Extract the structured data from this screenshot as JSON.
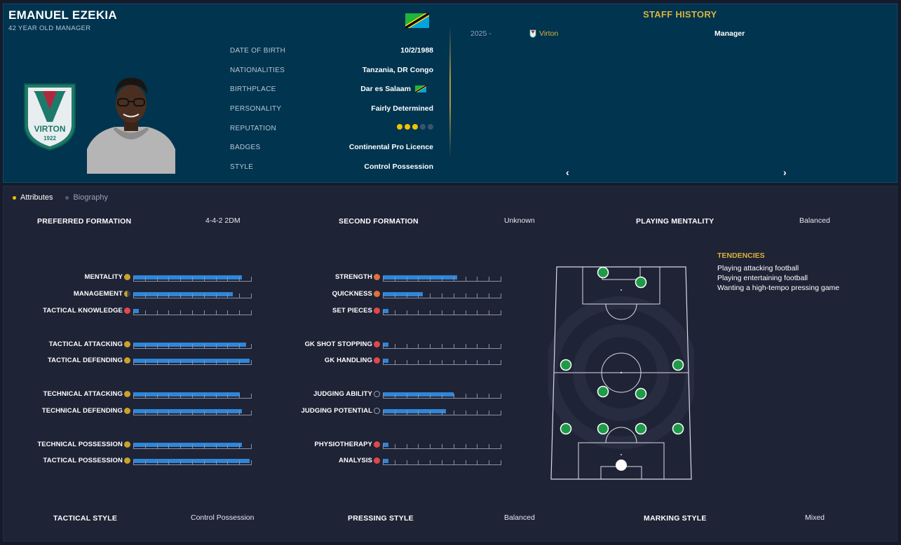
{
  "header": {
    "name": "EMANUEL EZEKIA",
    "subtitle": "42 YEAR OLD MANAGER"
  },
  "info": [
    {
      "label": "DATE OF BIRTH",
      "value": "10/2/1988"
    },
    {
      "label": "NATIONALITIES",
      "value": "Tanzania, DR Congo"
    },
    {
      "label": "BIRTHPLACE",
      "value": "Dar es Salaam"
    },
    {
      "label": "PERSONALITY",
      "value": "Fairly Determined"
    },
    {
      "label": "REPUTATION",
      "value": ""
    },
    {
      "label": "BADGES",
      "value": "Continental Pro Licence"
    },
    {
      "label": "STYLE",
      "value": "Control Possession"
    }
  ],
  "reputation": {
    "stars": 3,
    "max": 5
  },
  "crest": {
    "text": "VIRTON",
    "year": "1922"
  },
  "staff_history": {
    "title": "STAFF HISTORY",
    "rows": [
      {
        "year": "2025 -",
        "club": "Virton",
        "role": "Manager"
      }
    ],
    "prev_icon": "chevron-left-icon",
    "next_icon": "chevron-right-icon"
  },
  "tabs": [
    {
      "label": "Attributes",
      "active": true
    },
    {
      "label": "Biography",
      "active": false
    }
  ],
  "formations": {
    "preferred_label": "PREFERRED FORMATION",
    "preferred_value": "4-4-2 2DM",
    "second_label": "SECOND FORMATION",
    "second_value": "Unknown",
    "mentality_label": "PLAYING MENTALITY",
    "mentality_value": "Balanced"
  },
  "attributes_left": [
    {
      "label": "MENTALITY",
      "value": 0.92,
      "icon": "gold"
    },
    {
      "label": "MANAGEMENT",
      "value": 0.84,
      "icon": "half"
    },
    {
      "label": "TACTICAL KNOWLEDGE",
      "value": 0.05,
      "icon": "red"
    },
    {
      "label": "TACTICAL ATTACKING",
      "value": 0.95,
      "icon": "gold"
    },
    {
      "label": "TACTICAL DEFENDING",
      "value": 0.98,
      "icon": "gold"
    },
    {
      "label": "TECHNICAL ATTACKING",
      "value": 0.9,
      "icon": "gold"
    },
    {
      "label": "TECHNICAL DEFENDING",
      "value": 0.92,
      "icon": "gold"
    },
    {
      "label": "TECHNICAL POSSESSION",
      "value": 0.92,
      "icon": "gold"
    },
    {
      "label": "TACTICAL POSSESSION",
      "value": 0.98,
      "icon": "gold"
    }
  ],
  "attributes_right": [
    {
      "label": "STRENGTH",
      "value": 0.63,
      "icon": "orange"
    },
    {
      "label": "QUICKNESS",
      "value": 0.34,
      "icon": "orange"
    },
    {
      "label": "SET PIECES",
      "value": 0.05,
      "icon": "red"
    },
    {
      "label": "GK SHOT STOPPING",
      "value": 0.05,
      "icon": "red"
    },
    {
      "label": "GK HANDLING",
      "value": 0.05,
      "icon": "red"
    },
    {
      "label": "JUDGING ABILITY",
      "value": 0.6,
      "icon": "ball"
    },
    {
      "label": "JUDGING POTENTIAL",
      "value": 0.53,
      "icon": "ball"
    },
    {
      "label": "PHYSIOTHERAPY",
      "value": 0.05,
      "icon": "red"
    },
    {
      "label": "ANALYSIS",
      "value": 0.05,
      "icon": "red"
    }
  ],
  "tendencies": {
    "title": "TENDENCIES",
    "items": [
      "Playing attacking football",
      "Playing entertaining football",
      "Wanting a high-tempo pressing game"
    ]
  },
  "styles": {
    "tactical_label": "TACTICAL STYLE",
    "tactical_value": "Control Possession",
    "pressing_label": "PRESSING STYLE",
    "pressing_value": "Balanced",
    "marking_label": "MARKING STYLE",
    "marking_value": "Mixed"
  },
  "colors": {
    "accent": "#d9b43a",
    "bar": "#2f86d8",
    "player": "#1e9a48",
    "goalkeeper": "#ffffff"
  }
}
